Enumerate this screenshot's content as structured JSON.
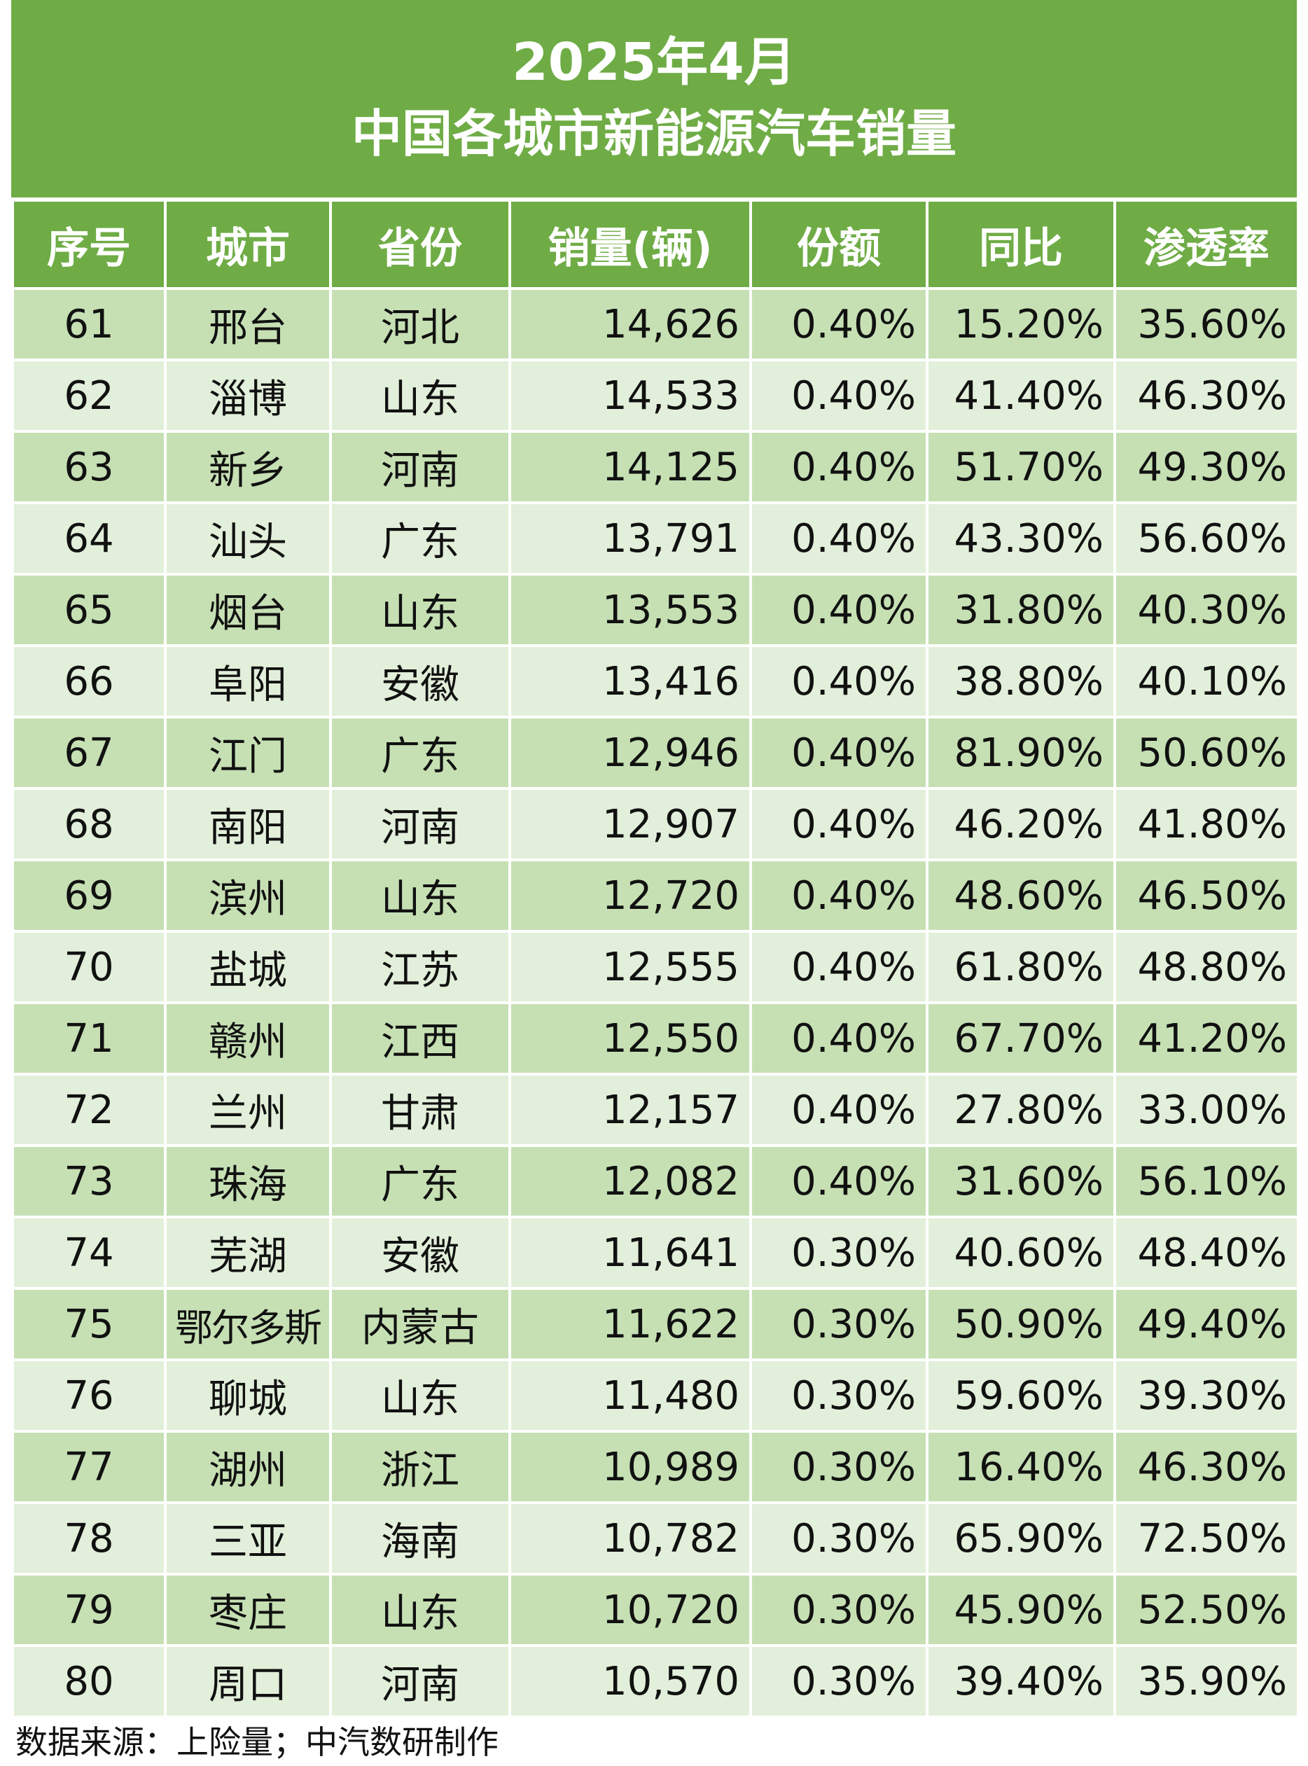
{
  "title": {
    "line1": "2025年4月",
    "line2": "中国各城市新能源汽车销量"
  },
  "columns": [
    "序号",
    "城市",
    "省份",
    "销量(辆)",
    "份额",
    "同比",
    "渗透率"
  ],
  "rows": [
    [
      "61",
      "邢台",
      "河北",
      "14,626",
      "0.40%",
      "15.20%",
      "35.60%"
    ],
    [
      "62",
      "淄博",
      "山东",
      "14,533",
      "0.40%",
      "41.40%",
      "46.30%"
    ],
    [
      "63",
      "新乡",
      "河南",
      "14,125",
      "0.40%",
      "51.70%",
      "49.30%"
    ],
    [
      "64",
      "汕头",
      "广东",
      "13,791",
      "0.40%",
      "43.30%",
      "56.60%"
    ],
    [
      "65",
      "烟台",
      "山东",
      "13,553",
      "0.40%",
      "31.80%",
      "40.30%"
    ],
    [
      "66",
      "阜阳",
      "安徽",
      "13,416",
      "0.40%",
      "38.80%",
      "40.10%"
    ],
    [
      "67",
      "江门",
      "广东",
      "12,946",
      "0.40%",
      "81.90%",
      "50.60%"
    ],
    [
      "68",
      "南阳",
      "河南",
      "12,907",
      "0.40%",
      "46.20%",
      "41.80%"
    ],
    [
      "69",
      "滨州",
      "山东",
      "12,720",
      "0.40%",
      "48.60%",
      "46.50%"
    ],
    [
      "70",
      "盐城",
      "江苏",
      "12,555",
      "0.40%",
      "61.80%",
      "48.80%"
    ],
    [
      "71",
      "赣州",
      "江西",
      "12,550",
      "0.40%",
      "67.70%",
      "41.20%"
    ],
    [
      "72",
      "兰州",
      "甘肃",
      "12,157",
      "0.40%",
      "27.80%",
      "33.00%"
    ],
    [
      "73",
      "珠海",
      "广东",
      "12,082",
      "0.40%",
      "31.60%",
      "56.10%"
    ],
    [
      "74",
      "芜湖",
      "安徽",
      "11,641",
      "0.30%",
      "40.60%",
      "48.40%"
    ],
    [
      "75",
      "鄂尔多斯",
      "内蒙古",
      "11,622",
      "0.30%",
      "50.90%",
      "49.40%"
    ],
    [
      "76",
      "聊城",
      "山东",
      "11,480",
      "0.30%",
      "59.60%",
      "39.30%"
    ],
    [
      "77",
      "湖州",
      "浙江",
      "10,989",
      "0.30%",
      "16.40%",
      "46.30%"
    ],
    [
      "78",
      "三亚",
      "海南",
      "10,782",
      "0.30%",
      "65.90%",
      "72.50%"
    ],
    [
      "79",
      "枣庄",
      "山东",
      "10,720",
      "0.30%",
      "45.90%",
      "52.50%"
    ],
    [
      "80",
      "周口",
      "河南",
      "10,570",
      "0.30%",
      "39.40%",
      "35.90%"
    ]
  ],
  "source": "数据来源：上险量；中汽数研制作",
  "colors": {
    "header_green": "#6fac46",
    "row_dark": "#c6e0b4",
    "row_light": "#e2efda"
  }
}
